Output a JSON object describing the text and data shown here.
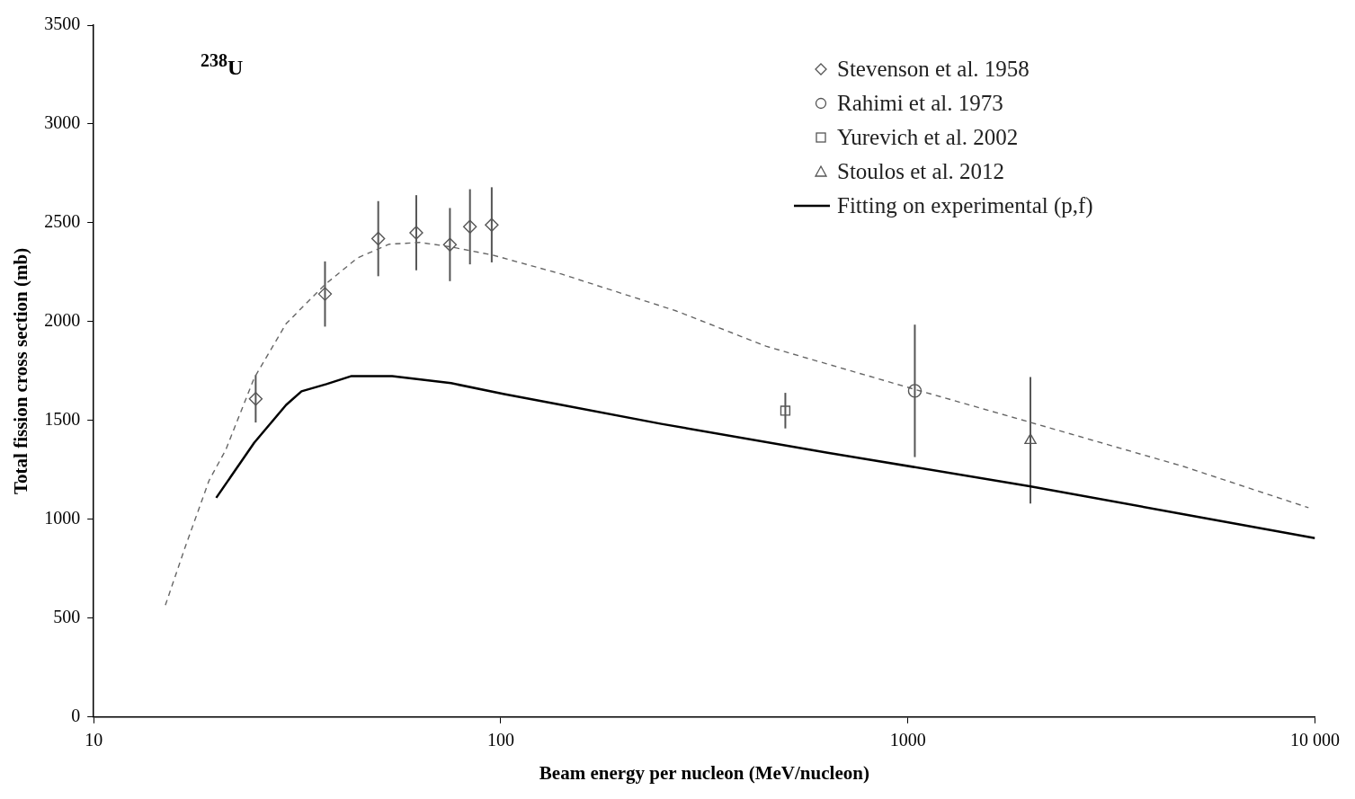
{
  "chart_data": {
    "type": "scatter",
    "xlabel": "Beam energy per nucleon (MeV/nucleon)",
    "ylabel": "Total fission cross section (mb)",
    "annotations": [
      "$^{238}$U"
    ],
    "log": "x",
    "xlim": [
      10,
      10000
    ],
    "xticks": [
      10,
      100,
      1000,
      {
        "value": 10000,
        "label": "10 000"
      }
    ],
    "ylim": [
      0,
      3500
    ],
    "yticks": [
      0,
      500,
      1000,
      1500,
      2000,
      2500,
      3000,
      3500
    ],
    "grid": false,
    "legend": "top right",
    "series": [
      {
        "name": "Stevenson et al. 1958",
        "type": "scatter",
        "marker": "diamond",
        "color": "#555555",
        "x": [
          25,
          37,
          50,
          62,
          75,
          84,
          95
        ],
        "values": [
          1610,
          2140,
          2420,
          2450,
          2390,
          2480,
          2490
        ],
        "errors": [
          120,
          165,
          190,
          190,
          185,
          190,
          190
        ]
      },
      {
        "name": "Rahimi et al. 1973",
        "type": "scatter",
        "marker": "circle",
        "color": "#555555",
        "x": [
          1040
        ],
        "values": [
          1650
        ],
        "errors": [
          335
        ]
      },
      {
        "name": "Yurevich et al. 2002",
        "type": "scatter",
        "marker": "square",
        "color": "#555555",
        "x": [
          500
        ],
        "values": [
          1550
        ],
        "errors": [
          90
        ]
      },
      {
        "name": "Stoulos et al. 2012",
        "type": "scatter",
        "marker": "triangle",
        "color": "#555555",
        "x": [
          2000
        ],
        "values": [
          1400
        ],
        "errors": [
          320
        ]
      },
      {
        "name": "Fitting on experimental (p,f)",
        "type": "line",
        "marker": "none",
        "line_style": "solid",
        "color": "#000000",
        "x": [
          20,
          24.8,
          29.7,
          32.4,
          37.3,
          43,
          54.1,
          75.5,
          102,
          141,
          248,
          635,
          1990,
          4730,
          10000
        ],
        "values": [
          1109,
          1388,
          1579,
          1648,
          1684,
          1725,
          1725,
          1689,
          1634,
          1579,
          1483,
          1337,
          1168,
          1027,
          905
        ]
      },
      {
        "type": "line",
        "marker": "none",
        "line_style": "dashed",
        "color": "#666666",
        "x": [
          15,
          16.8,
          19.2,
          21.1,
          24.8,
          29.7,
          36.9,
          44.5,
          53.2,
          63.4,
          75.5,
          95.5,
          141,
          270,
          448,
          1042,
          1990,
          4730,
          9640
        ],
        "values": [
          566,
          863,
          1196,
          1351,
          1716,
          1990,
          2186,
          2323,
          2392,
          2401,
          2378,
          2337,
          2241,
          2054,
          1876,
          1657,
          1492,
          1269,
          1059
        ]
      }
    ]
  }
}
